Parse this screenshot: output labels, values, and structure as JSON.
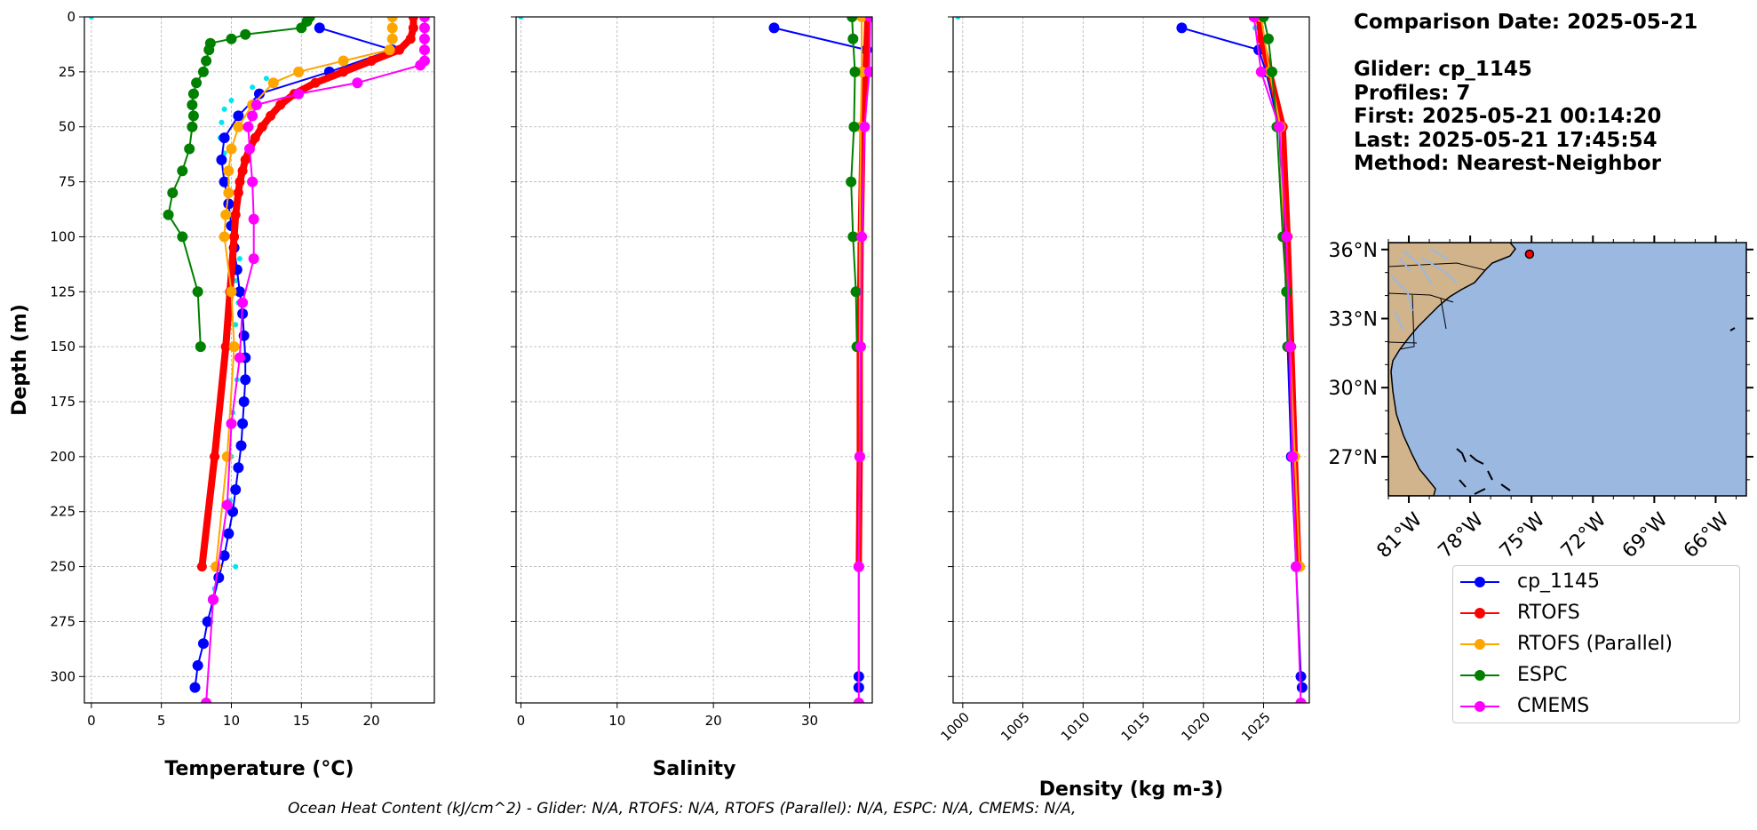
{
  "info": {
    "comparison_date": "Comparison Date: 2025-05-21",
    "glider": "Glider: cp_1145",
    "profiles": "Profiles: 7",
    "first": "First: 2025-05-21 00:14:20",
    "last": "Last: 2025-05-21 17:45:54",
    "method": "Method: Nearest-Neighbor"
  },
  "footer": "Ocean Heat Content (kJ/cm^2) - Glider: N/A,  RTOFS: N/A,  RTOFS (Parallel): N/A,  ESPC: N/A,  CMEMS: N/A,",
  "legend": [
    {
      "label": "cp_1145",
      "color": "#0000ff"
    },
    {
      "label": "RTOFS",
      "color": "#ff0000"
    },
    {
      "label": "RTOFS (Parallel)",
      "color": "#ffa500"
    },
    {
      "label": "ESPC",
      "color": "#008000"
    },
    {
      "label": "CMEMS",
      "color": "#ff00ff"
    }
  ],
  "map": {
    "lat_ticks": [
      "36°N",
      "33°N",
      "30°N",
      "27°N"
    ],
    "lon_ticks": [
      "81°W",
      "78°W",
      "75°W",
      "72°W",
      "69°W",
      "66°W"
    ],
    "land_color": "#d2b48c",
    "ocean_color": "#9bb8e1",
    "marker": {
      "lon": -75.1,
      "lat": 35.8
    }
  },
  "chart_data": [
    {
      "type": "line",
      "xlabel": "Temperature (°C)",
      "ylabel": "Depth (m)",
      "xlim": [
        -0.5,
        24.5
      ],
      "ylim": [
        312,
        0
      ],
      "x_ticks": [
        0,
        5,
        10,
        15,
        20
      ],
      "y_ticks": [
        0,
        25,
        50,
        75,
        100,
        125,
        150,
        175,
        200,
        225,
        250,
        275,
        300
      ],
      "grid": true,
      "profile_scatter": {
        "color": "#00e5ee",
        "depth": [
          0,
          28,
          32,
          38,
          42,
          48,
          55,
          62,
          70,
          80,
          90,
          100,
          110,
          120,
          130,
          140,
          150,
          165,
          180,
          200,
          220,
          235,
          250,
          260
        ],
        "values": [
          0,
          12.5,
          11.5,
          10.0,
          9.5,
          9.3,
          9.2,
          9.5,
          9.8,
          10.0,
          9.6,
          10.2,
          10.6,
          10.3,
          10.5,
          10.3,
          10.2,
          10.4,
          10.1,
          10.0,
          9.9,
          10.0,
          10.3,
          8.8
        ]
      },
      "series": [
        {
          "name": "cp_1145",
          "color": "#0000ff",
          "width": 2,
          "depth": [
            5,
            15,
            25,
            35,
            45,
            55,
            65,
            75,
            85,
            95,
            105,
            115,
            125,
            135,
            145,
            155,
            165,
            175,
            185,
            195,
            205,
            215,
            225,
            235,
            245,
            255,
            265,
            275,
            285,
            295,
            305
          ],
          "values": [
            16.3,
            21.5,
            17.0,
            12.0,
            10.5,
            9.5,
            9.3,
            9.5,
            9.8,
            10.0,
            10.2,
            10.4,
            10.6,
            10.8,
            10.9,
            11.0,
            11.0,
            10.9,
            10.8,
            10.7,
            10.5,
            10.3,
            10.1,
            9.8,
            9.5,
            9.1,
            8.7,
            8.3,
            8.0,
            7.6,
            7.4
          ]
        },
        {
          "name": "RTOFS",
          "color": "#ff0000",
          "width": 8,
          "depth": [
            0,
            5,
            10,
            15,
            20,
            25,
            30,
            35,
            40,
            45,
            50,
            55,
            60,
            65,
            70,
            75,
            80,
            90,
            100,
            125,
            150,
            200,
            250
          ],
          "values": [
            23.0,
            23.0,
            22.8,
            22.0,
            20.0,
            18.0,
            16.0,
            14.5,
            13.5,
            12.8,
            12.2,
            11.7,
            11.3,
            11.0,
            10.8,
            10.6,
            10.5,
            10.3,
            10.2,
            9.9,
            9.6,
            8.8,
            7.9
          ]
        },
        {
          "name": "RTOFS (Parallel)",
          "color": "#ffa500",
          "width": 2,
          "depth": [
            0,
            5,
            10,
            15,
            20,
            25,
            30,
            40,
            50,
            60,
            70,
            80,
            90,
            100,
            125,
            150,
            200,
            250
          ],
          "values": [
            21.5,
            21.5,
            21.5,
            21.3,
            18.0,
            14.8,
            13.0,
            11.5,
            10.5,
            10.0,
            9.8,
            9.8,
            9.6,
            9.5,
            10.0,
            10.2,
            9.7,
            8.9
          ]
        },
        {
          "name": "ESPC",
          "color": "#008000",
          "width": 2,
          "depth": [
            0,
            2,
            5,
            8,
            10,
            12,
            15,
            20,
            25,
            30,
            35,
            40,
            45,
            50,
            60,
            70,
            80,
            90,
            100,
            125,
            150
          ],
          "values": [
            15.6,
            15.4,
            15.0,
            11.0,
            10.0,
            8.5,
            8.4,
            8.2,
            8.0,
            7.5,
            7.3,
            7.2,
            7.3,
            7.2,
            7.0,
            6.5,
            5.8,
            5.5,
            6.5,
            7.6,
            7.8
          ]
        },
        {
          "name": "CMEMS",
          "color": "#ff00ff",
          "width": 2,
          "depth": [
            0,
            5,
            10,
            15,
            20,
            22,
            30,
            35,
            40,
            45,
            50,
            60,
            75,
            92,
            110,
            130,
            155,
            185,
            222,
            265,
            312
          ],
          "values": [
            23.8,
            23.8,
            23.8,
            23.8,
            23.8,
            23.5,
            19.0,
            14.8,
            11.8,
            11.5,
            11.2,
            11.3,
            11.5,
            11.6,
            11.6,
            10.8,
            10.6,
            10.0,
            9.7,
            8.7,
            8.2
          ]
        }
      ]
    },
    {
      "type": "line",
      "xlabel": "Salinity",
      "xlim": [
        -0.5,
        36.5
      ],
      "ylim": [
        312,
        0
      ],
      "x_ticks": [
        0,
        10,
        20,
        30
      ],
      "grid": true,
      "profile_scatter": {
        "color": "#00e5ee",
        "depth": [
          0
        ],
        "values": [
          0
        ]
      },
      "series": [
        {
          "name": "cp_1145",
          "color": "#0000ff",
          "width": 2,
          "depth": [
            5,
            15,
            25,
            50,
            100,
            150,
            200,
            250,
            300,
            305
          ],
          "values": [
            26.3,
            35.9,
            35.7,
            35.5,
            35.3,
            35.2,
            35.2,
            35.1,
            35.1,
            35.1
          ]
        },
        {
          "name": "RTOFS",
          "color": "#ff0000",
          "width": 7,
          "depth": [
            0,
            25,
            50,
            100,
            150,
            200,
            250
          ],
          "values": [
            36.0,
            35.8,
            35.5,
            35.3,
            35.2,
            35.2,
            35.1
          ]
        },
        {
          "name": "RTOFS (Parallel)",
          "color": "#ffa500",
          "width": 2,
          "depth": [
            0,
            25,
            50,
            100,
            150,
            200,
            250
          ],
          "values": [
            35.4,
            35.4,
            35.3,
            35.2,
            35.2,
            35.2,
            35.1
          ]
        },
        {
          "name": "ESPC",
          "color": "#008000",
          "width": 2,
          "depth": [
            0,
            10,
            25,
            50,
            75,
            100,
            125,
            150
          ],
          "values": [
            34.4,
            34.5,
            34.7,
            34.6,
            34.3,
            34.5,
            34.8,
            34.9
          ]
        },
        {
          "name": "CMEMS",
          "color": "#ff00ff",
          "width": 2,
          "depth": [
            0,
            25,
            50,
            100,
            150,
            200,
            250,
            312
          ],
          "values": [
            36.3,
            36.2,
            35.7,
            35.4,
            35.3,
            35.2,
            35.1,
            35.1
          ]
        }
      ]
    },
    {
      "type": "line",
      "xlabel": "Density (kg m-3)",
      "xlim": [
        999.2,
        1028.8
      ],
      "ylim": [
        312,
        0
      ],
      "x_ticks": [
        1000,
        1005,
        1010,
        1015,
        1020,
        1025
      ],
      "grid": true,
      "profile_scatter": {
        "color": "#00e5ee",
        "depth": [
          0,
          5
        ],
        "values": [
          999.6,
          1024.3
        ]
      },
      "series": [
        {
          "name": "cp_1145",
          "color": "#0000ff",
          "width": 2,
          "depth": [
            5,
            15,
            25,
            50,
            100,
            150,
            200,
            250,
            300,
            305
          ],
          "values": [
            1018.2,
            1024.6,
            1025.2,
            1026.3,
            1026.7,
            1027.0,
            1027.3,
            1027.7,
            1028.1,
            1028.2
          ]
        },
        {
          "name": "RTOFS",
          "color": "#ff0000",
          "width": 7,
          "depth": [
            0,
            10,
            25,
            50,
            100,
            150,
            200,
            250
          ],
          "values": [
            1024.6,
            1024.8,
            1025.5,
            1026.6,
            1027.0,
            1027.3,
            1027.6,
            1027.9
          ]
        },
        {
          "name": "RTOFS (Parallel)",
          "color": "#ffa500",
          "width": 2,
          "depth": [
            0,
            25,
            50,
            100,
            150,
            200,
            250
          ],
          "values": [
            1024.8,
            1025.5,
            1026.4,
            1026.6,
            1027.2,
            1027.6,
            1028.0
          ]
        },
        {
          "name": "ESPC",
          "color": "#008000",
          "width": 2,
          "depth": [
            0,
            10,
            25,
            50,
            100,
            125,
            150
          ],
          "values": [
            1025.0,
            1025.4,
            1025.7,
            1026.1,
            1026.6,
            1026.9,
            1027.0
          ]
        },
        {
          "name": "CMEMS",
          "color": "#ff00ff",
          "width": 2,
          "depth": [
            0,
            25,
            50,
            100,
            150,
            200,
            250,
            312
          ],
          "values": [
            1024.2,
            1024.8,
            1026.3,
            1026.9,
            1027.2,
            1027.4,
            1027.7,
            1028.1
          ]
        }
      ]
    }
  ]
}
